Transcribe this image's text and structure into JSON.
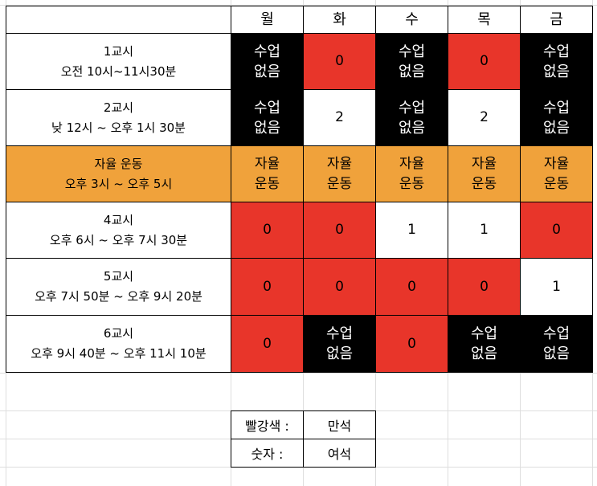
{
  "header": {
    "days": [
      "월",
      "화",
      "수",
      "목",
      "금"
    ]
  },
  "colors": {
    "full": "#e8352a",
    "none": "#000000",
    "self_study": "#f0a23b",
    "open": "#ffffff"
  },
  "rows": [
    {
      "label": "1교시\n오전 10시~11시30분",
      "cells": [
        {
          "text": "수업\n없음",
          "kind": "none"
        },
        {
          "text": "0",
          "kind": "full"
        },
        {
          "text": "수업\n없음",
          "kind": "none"
        },
        {
          "text": "0",
          "kind": "full"
        },
        {
          "text": "수업\n없음",
          "kind": "none"
        }
      ]
    },
    {
      "label": "2교시\n낮 12시 ~ 오후 1시 30분",
      "cells": [
        {
          "text": "수업\n없음",
          "kind": "none"
        },
        {
          "text": "2",
          "kind": "open"
        },
        {
          "text": "수업\n없음",
          "kind": "none"
        },
        {
          "text": "2",
          "kind": "open"
        },
        {
          "text": "수업\n없음",
          "kind": "none"
        }
      ]
    },
    {
      "label": "자율 운동\n오후 3시 ~ 오후 5시",
      "cells": [
        {
          "text": "자율\n운동",
          "kind": "self"
        },
        {
          "text": "자율\n운동",
          "kind": "self"
        },
        {
          "text": "자율\n운동",
          "kind": "self"
        },
        {
          "text": "자율\n운동",
          "kind": "self"
        },
        {
          "text": "자율\n운동",
          "kind": "self"
        }
      ]
    },
    {
      "label": "4교시\n오후 6시 ~ 오후 7시 30분",
      "cells": [
        {
          "text": "0",
          "kind": "full"
        },
        {
          "text": "0",
          "kind": "full"
        },
        {
          "text": "1",
          "kind": "open"
        },
        {
          "text": "1",
          "kind": "open"
        },
        {
          "text": "0",
          "kind": "full"
        }
      ]
    },
    {
      "label": "5교시\n오후 7시 50분  ~ 오후 9시 20분",
      "cells": [
        {
          "text": "0",
          "kind": "full"
        },
        {
          "text": "0",
          "kind": "full"
        },
        {
          "text": "0",
          "kind": "full"
        },
        {
          "text": "0",
          "kind": "full"
        },
        {
          "text": "1",
          "kind": "open"
        }
      ]
    },
    {
      "label": "6교시\n오후 9시 40분 ~ 오후 11시 10분",
      "cells": [
        {
          "text": "0",
          "kind": "full"
        },
        {
          "text": "수업\n없음",
          "kind": "none"
        },
        {
          "text": "0",
          "kind": "full"
        },
        {
          "text": "수업\n없음",
          "kind": "none"
        },
        {
          "text": "수업\n없음",
          "kind": "none"
        }
      ]
    }
  ],
  "legend": [
    {
      "key": "빨강색 :",
      "value": "만석"
    },
    {
      "key": "숫자 :",
      "value": "여석"
    }
  ]
}
